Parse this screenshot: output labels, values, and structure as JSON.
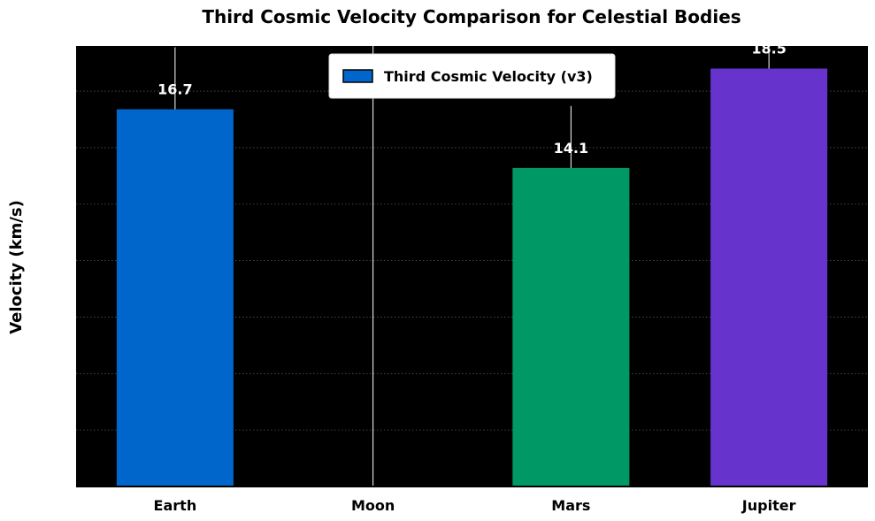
{
  "chart_data": {
    "type": "bar",
    "title": "Third Cosmic Velocity Comparison for Celestial Bodies",
    "xlabel": "",
    "ylabel": "Velocity (km/s)",
    "categories": [
      "Earth",
      "Moon",
      "Mars",
      "Jupiter"
    ],
    "series": [
      {
        "name": "Third Cosmic Velocity (v3)",
        "values": [
          16.7,
          0,
          14.1,
          18.5
        ],
        "colors": [
          "#0066cc",
          "#000000",
          "#009966",
          "#6633cc"
        ]
      }
    ],
    "data_labels": [
      "16.7",
      "",
      "14.1",
      "18.5"
    ],
    "ylim": [
      0,
      19.5
    ],
    "grid": true,
    "legend_position": "top-center",
    "background": "#000000"
  }
}
